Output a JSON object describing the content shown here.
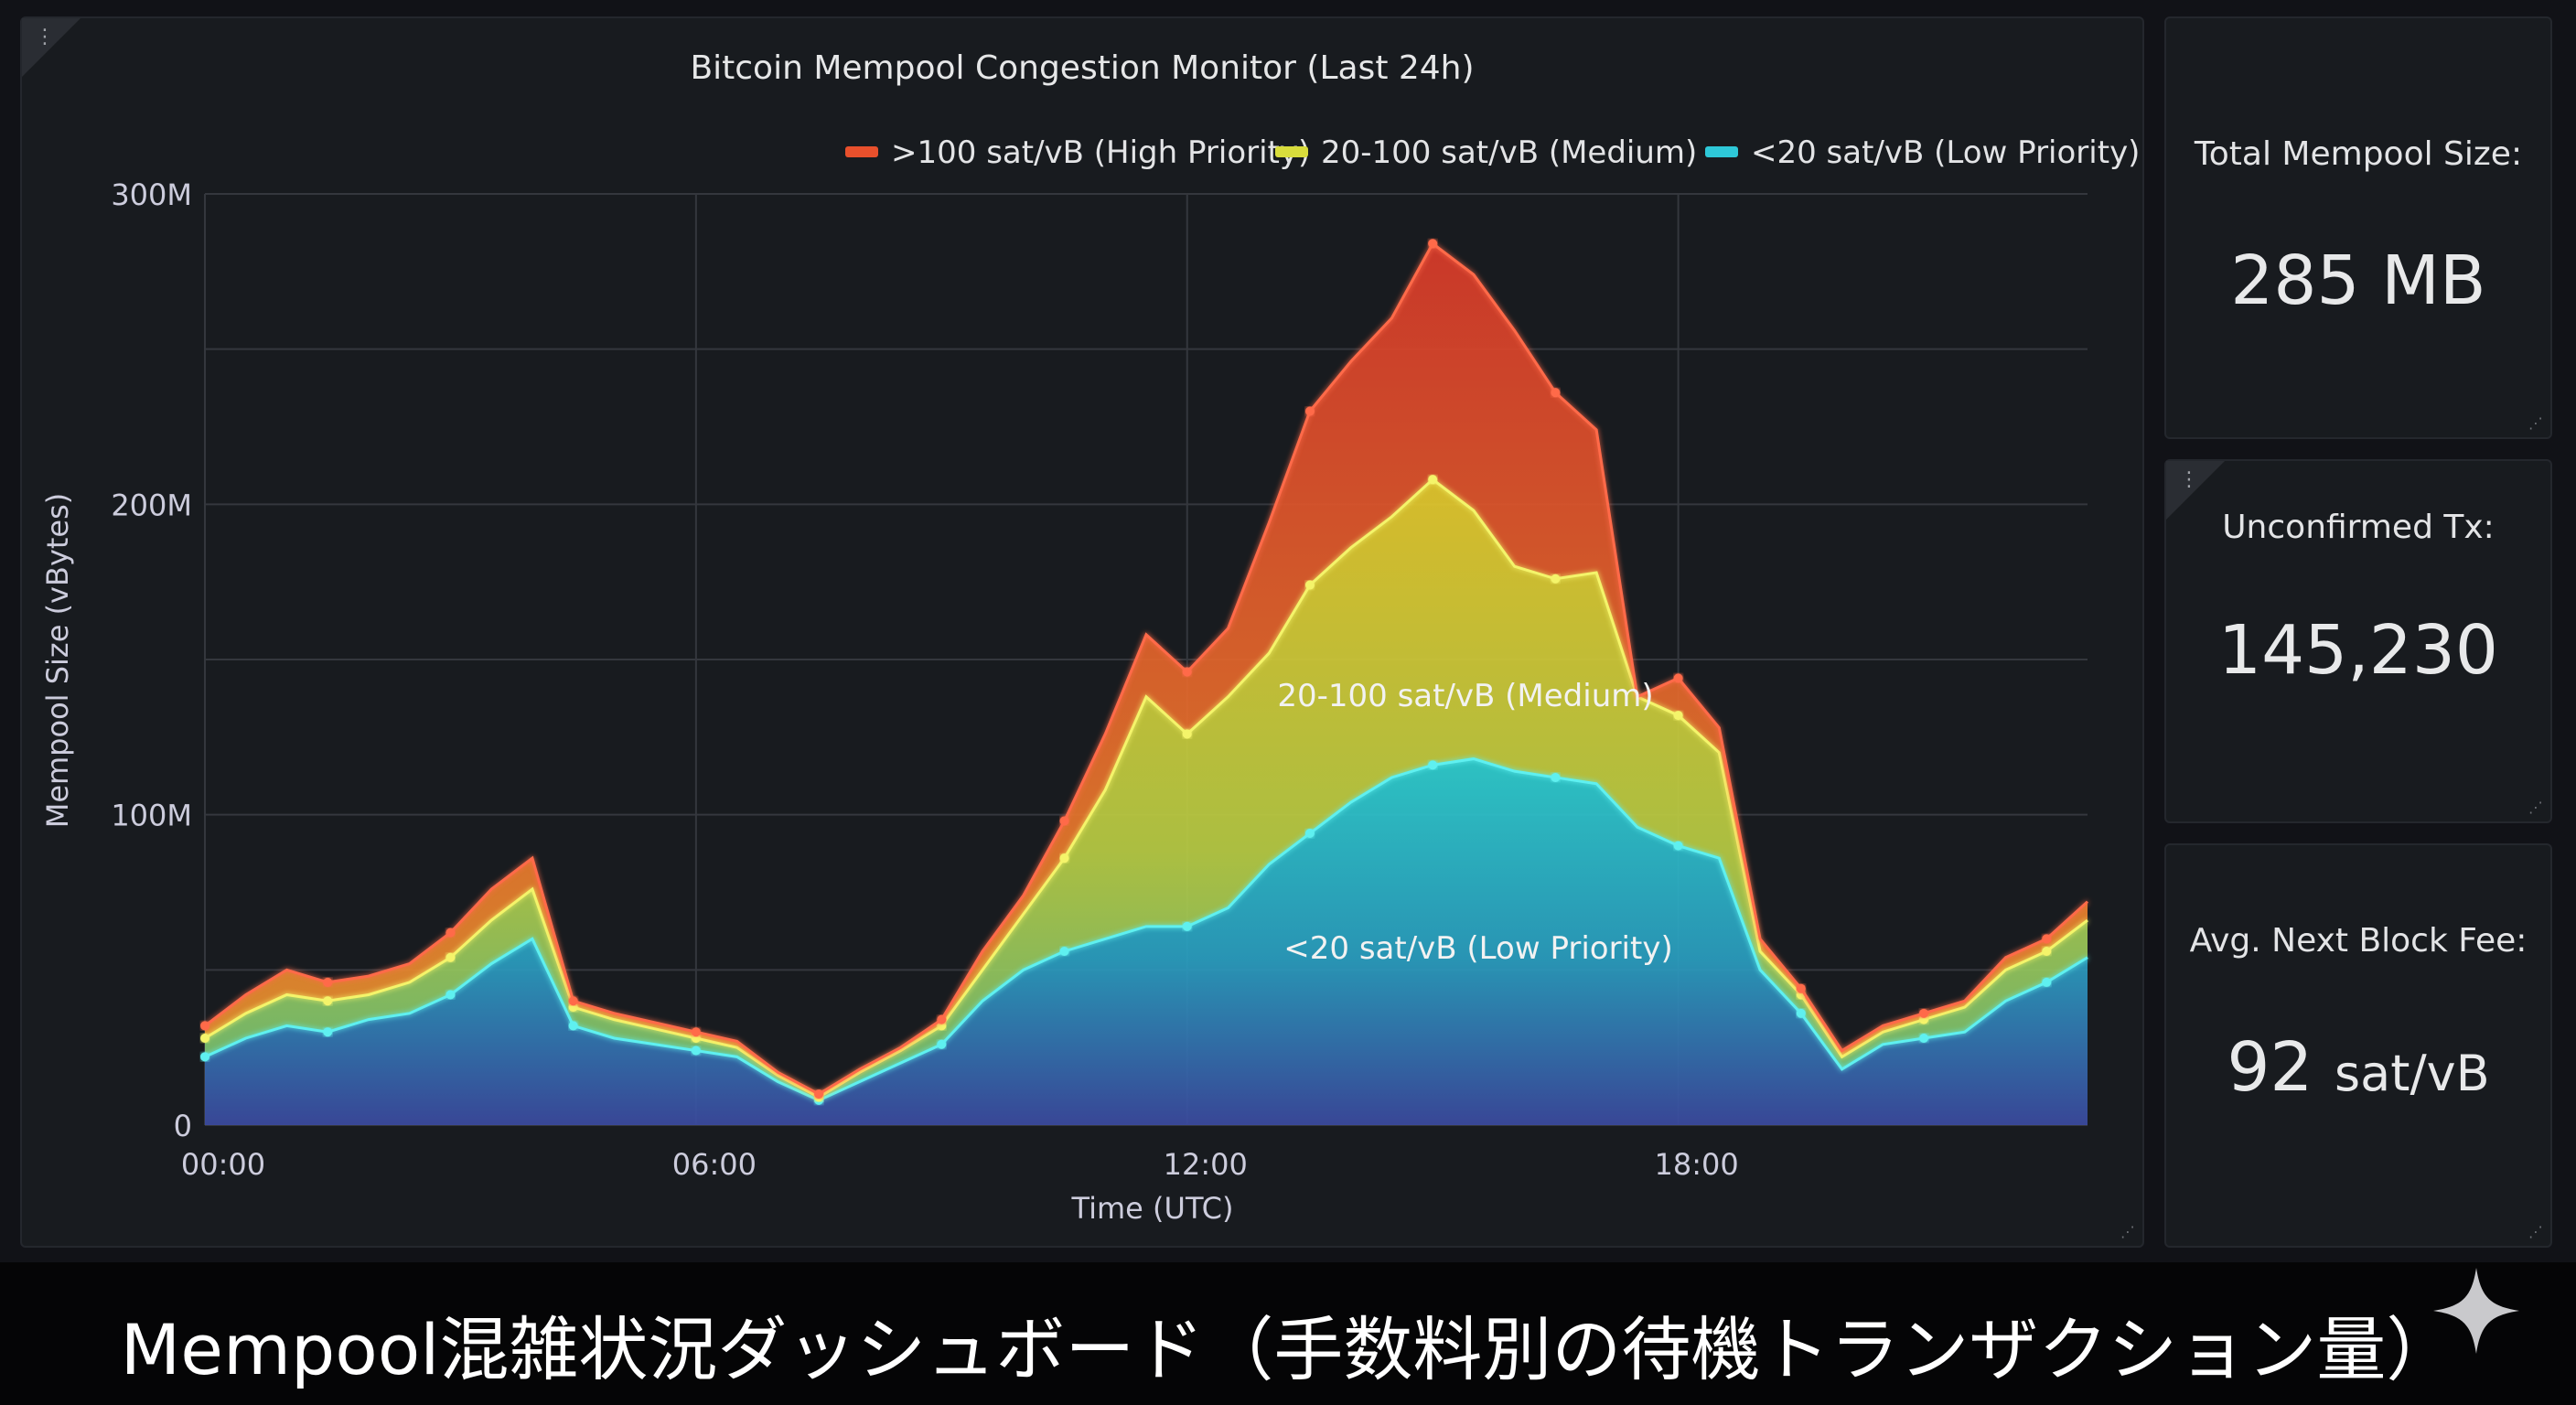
{
  "dashboard": {
    "menu_icon": "ellipsis-vertical-icon",
    "resize_icon": "resize-corner-icon"
  },
  "chart_data": {
    "type": "area",
    "title": "Bitcoin Mempool Congestion Monitor (Last 24h)",
    "xlabel": "Time (UTC)",
    "ylabel": "Mempool Size (vBytes)",
    "x_ticks": [
      "00:00",
      "06:00",
      "12:00",
      "18:00"
    ],
    "y_ticks": [
      "0",
      "100M",
      "200M",
      "300M"
    ],
    "ylim": [
      0,
      300
    ],
    "xlim": [
      0,
      23
    ],
    "stacked": true,
    "grid": true,
    "legend_position": "top-right",
    "x": [
      0,
      0.5,
      1,
      1.5,
      2,
      2.5,
      3,
      3.5,
      4,
      4.5,
      5,
      5.5,
      6,
      6.5,
      7,
      7.5,
      8,
      8.5,
      9,
      9.5,
      10,
      10.5,
      11,
      11.5,
      12,
      12.5,
      13,
      13.5,
      14,
      14.5,
      15,
      15.5,
      16,
      16.5,
      17,
      17.5,
      18,
      18.5,
      19,
      19.5,
      20,
      20.5,
      21,
      21.5,
      22,
      22.5,
      23
    ],
    "series": [
      {
        "name": "<20 sat/vB (Low Priority)",
        "color": "#2ec8d8",
        "values": [
          22,
          28,
          32,
          30,
          34,
          36,
          42,
          52,
          60,
          32,
          28,
          26,
          24,
          22,
          14,
          8,
          14,
          20,
          26,
          40,
          50,
          56,
          60,
          64,
          64,
          70,
          84,
          94,
          104,
          112,
          116,
          118,
          114,
          112,
          110,
          96,
          90,
          86,
          50,
          36,
          18,
          26,
          28,
          30,
          40,
          46,
          54
        ]
      },
      {
        "name": "20-100 sat/vB (Medium)",
        "color": "#d8dc3c",
        "values": [
          6,
          8,
          10,
          10,
          8,
          10,
          12,
          14,
          16,
          6,
          6,
          5,
          4,
          3,
          2,
          1,
          3,
          4,
          6,
          10,
          18,
          30,
          48,
          74,
          62,
          68,
          68,
          80,
          82,
          84,
          92,
          80,
          66,
          64,
          68,
          42,
          42,
          34,
          6,
          6,
          4,
          4,
          6,
          8,
          10,
          10,
          12
        ]
      },
      {
        "name": ">100 sat/vB (High Priority)",
        "color": "#e8502c",
        "values": [
          4,
          6,
          8,
          6,
          6,
          6,
          8,
          10,
          10,
          2,
          2,
          2,
          2,
          2,
          1,
          1,
          1,
          1,
          2,
          6,
          6,
          12,
          18,
          20,
          20,
          22,
          42,
          56,
          60,
          64,
          76,
          76,
          76,
          60,
          46,
          0,
          12,
          8,
          4,
          2,
          2,
          2,
          2,
          2,
          4,
          4,
          6
        ]
      }
    ],
    "legend": [
      {
        "label": ">100 sat/vB (High Priority)",
        "color": "#e8502c"
      },
      {
        "label": "20-100 sat/vB (Medium)",
        "color": "#d8dc3c"
      },
      {
        "label": "<20 sat/vB (Low Priority)",
        "color": "#2ec8d8"
      }
    ],
    "annotations": [
      "20-100 sat/vB (Medium)",
      "<20 sat/vB (Low Priority)"
    ]
  },
  "stats": {
    "total_size": {
      "label": "Total Mempool Size:",
      "value": "285 MB"
    },
    "unconfirmed": {
      "label": "Unconfirmed Tx:",
      "value": "145,230"
    },
    "fee": {
      "label": "Avg. Next Block Fee:",
      "value": "92",
      "unit": "sat/vB"
    }
  },
  "caption": {
    "text": "Mempool混雑状況ダッシュボード（手数料別の待機トランザクション量）",
    "icon": "sparkle-icon"
  }
}
